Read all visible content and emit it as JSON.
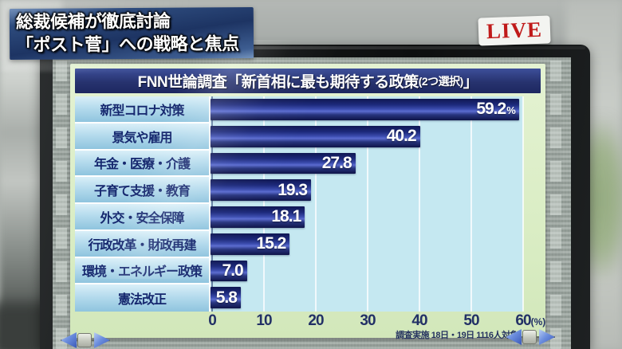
{
  "overlay": {
    "headline_lines": [
      "総裁候補が徹底討論",
      "「ポスト菅」への戦略と焦点"
    ],
    "live_label": "LIVE"
  },
  "chart_data": {
    "type": "bar",
    "orientation": "horizontal",
    "title": "FNN世論調査「新首相に最も期待する政策(2つ選択)」",
    "title_parts": {
      "main": "FNN世論調査「新首相に最も期待する政策",
      "note": "(2つ選択)",
      "close": "」"
    },
    "categories": [
      "新型コロナ対策",
      "景気や雇用",
      "年金・医療・介護",
      "子育て支援・教育",
      "外交・安全保障",
      "行政改革・財政再建",
      "環境・エネルギー政策",
      "憲法改正"
    ],
    "values": [
      59.2,
      40.2,
      27.8,
      19.3,
      18.1,
      15.2,
      7.0,
      5.8
    ],
    "value_labels": [
      "59.2",
      "40.2",
      "27.8",
      "19.3",
      "18.1",
      "15.2",
      "7.0",
      "5.8"
    ],
    "first_value_suffix": "%",
    "xlim": [
      0,
      60
    ],
    "x_ticks": [
      0,
      10,
      20,
      30,
      40,
      50,
      60
    ],
    "x_axis_suffix": "(%)",
    "footnote": "調査実施 18日・19日 1116人対象",
    "grid": true,
    "legend": "none",
    "bar_color": "#1d2b7a",
    "plot_bg": "#c5e8f1",
    "axis_strip_bg": "#d8ecc2",
    "title_bg": "#27336f",
    "label_text_color": "#15276e"
  }
}
